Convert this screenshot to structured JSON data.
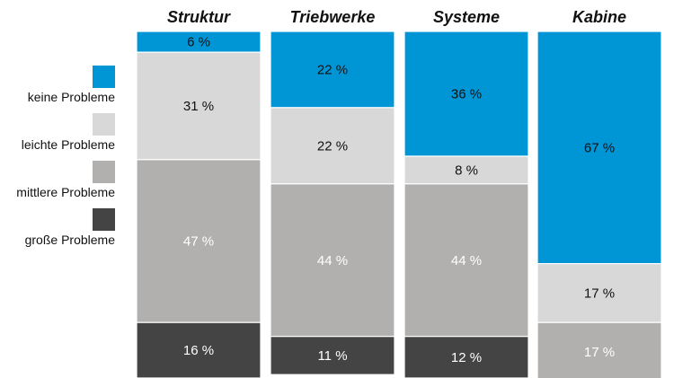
{
  "chart_data": {
    "type": "bar",
    "stacked": true,
    "orientation": "vertical",
    "title": "",
    "xlabel": "",
    "ylabel": "",
    "ylim": [
      0,
      100
    ],
    "grid": false,
    "legend_position": "left",
    "categories": [
      "Struktur",
      "Triebwerke",
      "Systeme",
      "Kabine"
    ],
    "series": [
      {
        "name": "keine Probleme",
        "color": "#0096d6",
        "values": [
          6,
          22,
          36,
          67
        ],
        "labels": [
          "6 %",
          "22 %",
          "36 %",
          "67 %"
        ]
      },
      {
        "name": "leichte Probleme",
        "color": "#d8d8d8",
        "values": [
          31,
          22,
          8,
          17
        ],
        "labels": [
          "31 %",
          "22 %",
          "8 %",
          "17 %"
        ]
      },
      {
        "name": "mittlere Probleme",
        "color": "#b1b0af",
        "values": [
          47,
          44,
          44,
          17
        ],
        "labels": [
          "47 %",
          "44 %",
          "44 %",
          "17 %"
        ]
      },
      {
        "name": "große Probleme",
        "color": "#444444",
        "values": [
          16,
          11,
          12,
          0
        ],
        "labels": [
          "16 %",
          "11 %",
          "12 %",
          ""
        ]
      }
    ]
  }
}
